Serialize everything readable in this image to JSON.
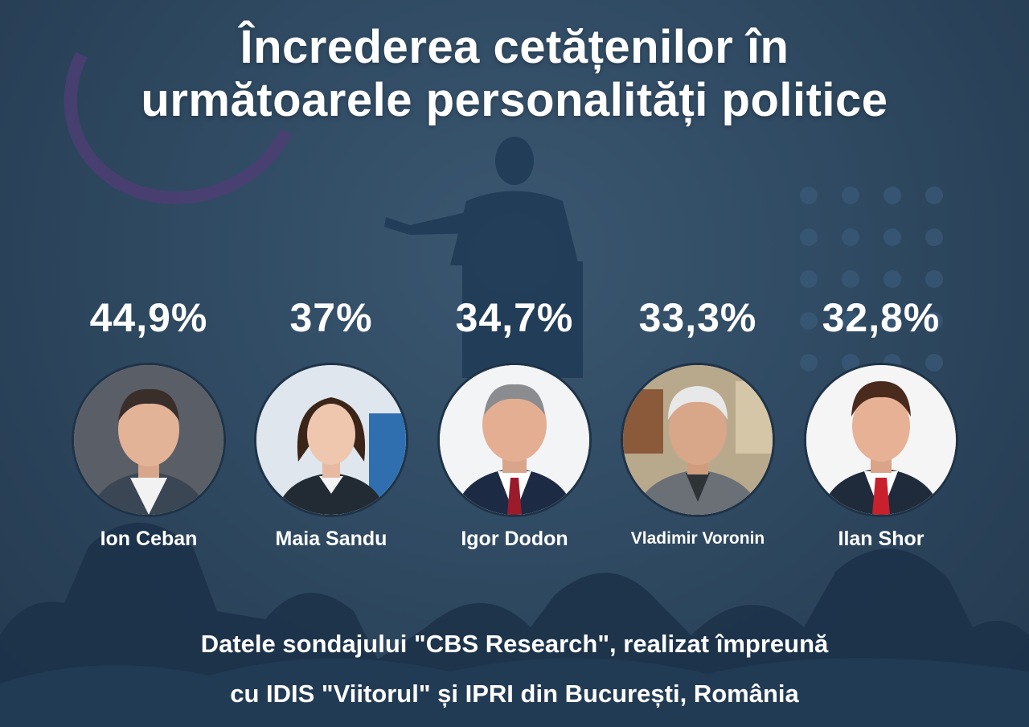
{
  "title": {
    "line1": "Încrederea cetățenilor în",
    "line2": "următoarele personalități politice"
  },
  "candidates": [
    {
      "name": "Ion Ceban",
      "percent": "44,9%"
    },
    {
      "name": "Maia Sandu",
      "percent": "37%"
    },
    {
      "name": "Igor Dodon",
      "percent": "34,7%"
    },
    {
      "name": "Vladimir Voronin",
      "percent": "33,3%"
    },
    {
      "name": "Ilan Shor",
      "percent": "32,8%"
    }
  ],
  "footer": {
    "line1": "Datele sondajului \"CBS Research\", realizat împreună",
    "line2": "cu IDIS \"Viitorul\" și IPRI din București, România"
  },
  "colors": {
    "background": "#2f4a62",
    "text": "#ffffff",
    "accent_ring": "#4b3f72"
  }
}
